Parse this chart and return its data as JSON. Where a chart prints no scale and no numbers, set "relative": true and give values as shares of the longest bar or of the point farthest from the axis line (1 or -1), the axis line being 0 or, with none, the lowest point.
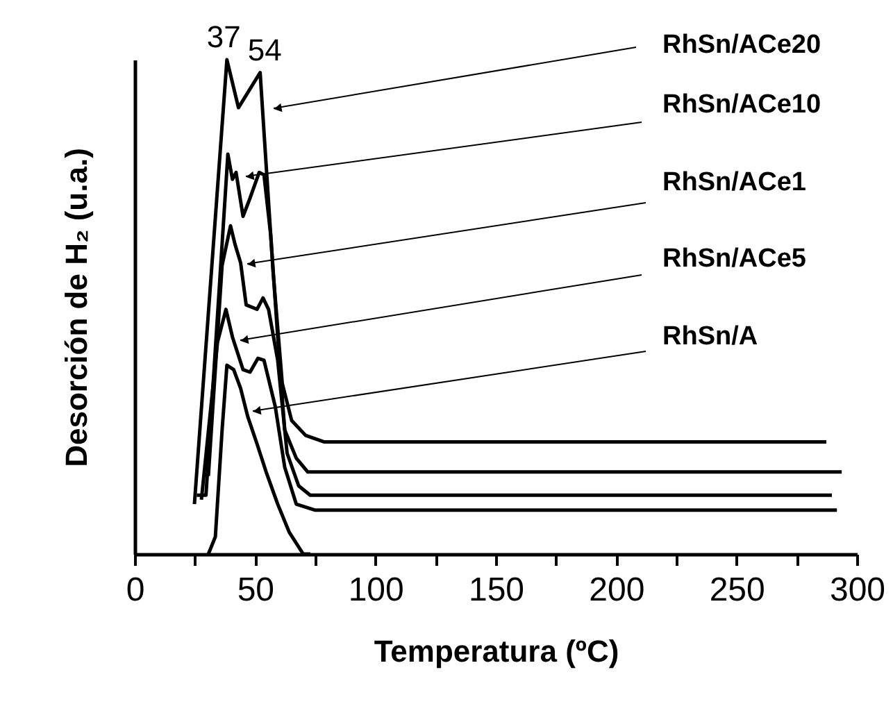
{
  "chart_data": {
    "type": "line",
    "relative": true,
    "xlabel": "Temperatura   (ºC)",
    "ylabel": "Desorción de H₂   (u.a.)",
    "xlim": [
      0,
      300
    ],
    "xticks": [
      0,
      {
        "value": 25,
        "label": null
      },
      50,
      {
        "value": 75,
        "label": null
      },
      100,
      {
        "value": 125,
        "label": null
      },
      150,
      {
        "value": 175,
        "label": null
      },
      200,
      {
        "value": 225,
        "label": null
      },
      250,
      {
        "value": 275,
        "label": null
      },
      300
    ],
    "legend": false,
    "grid": false,
    "marker": "none",
    "line_style": "solid",
    "annotations": [
      {
        "text": "37",
        "x": 37,
        "y": 1.0
      },
      {
        "text": "54",
        "x": 54,
        "y": 0.974
      }
    ],
    "series": [
      {
        "name": "RhSn/ACe20",
        "color": "#000000",
        "x": [
          24.8,
          38.3,
          43.1,
          52.1,
          57.5,
          61.3,
          65.2,
          71.0,
          78.6,
          287.3
        ],
        "values": [
          0.101,
          1.0,
          0.903,
          0.974,
          0.57,
          0.345,
          0.27,
          0.24,
          0.227,
          0.227
        ]
      },
      {
        "name": "RhSn/ACe10",
        "color": "#000000",
        "x": [
          25.8,
          29.6,
          38.7,
          40.6,
          42.1,
          45.0,
          47.9,
          51.7,
          53.7,
          56.5,
          59.4,
          62.3,
          67.1,
          71.9,
          293.7
        ],
        "values": [
          0.119,
          0.119,
          0.809,
          0.758,
          0.772,
          0.683,
          0.72,
          0.772,
          0.767,
          0.645,
          0.439,
          0.251,
          0.194,
          0.166,
          0.166
        ]
      },
      {
        "name": "RhSn/ACe1",
        "color": "#000000",
        "x": [
          30.6,
          36.3,
          39.8,
          41.7,
          44.0,
          46.3,
          50.8,
          53.3,
          55.6,
          59.4,
          63.3,
          68.1,
          72.9,
          289.6
        ],
        "values": [
          0.158,
          0.584,
          0.664,
          0.626,
          0.589,
          0.504,
          0.495,
          0.518,
          0.495,
          0.392,
          0.204,
          0.138,
          0.119,
          0.119
        ]
      },
      {
        "name": "RhSn/ACe5",
        "color": "#000000",
        "x": [
          27.7,
          34.4,
          37.9,
          40.6,
          45.0,
          47.9,
          51.2,
          53.7,
          55.6,
          58.4,
          62.3,
          67.1,
          74.8,
          291.7
        ],
        "values": [
          0.11,
          0.429,
          0.495,
          0.439,
          0.373,
          0.368,
          0.396,
          0.392,
          0.354,
          0.298,
          0.176,
          0.101,
          0.089,
          0.089
        ]
      },
      {
        "name": "RhSn/A",
        "color": "#000000",
        "x": [
          30.6,
          33.5,
          36.3,
          38.3,
          41.1,
          44.0,
          46.9,
          50.8,
          54.6,
          59.4,
          64.2,
          70.0,
          73.0
        ],
        "values": [
          0.0,
          0.035,
          0.251,
          0.382,
          0.373,
          0.335,
          0.279,
          0.223,
          0.166,
          0.101,
          0.044,
          0.0,
          0.0
        ]
      }
    ]
  }
}
